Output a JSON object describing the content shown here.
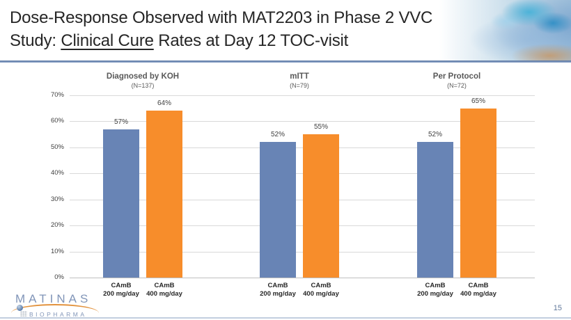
{
  "slide": {
    "title_line1": "Dose-Response Observed with MAT2203 in Phase 2 VVC",
    "title_line2_prefix": "Study: ",
    "title_line2_underline": "Clinical Cure",
    "title_line2_suffix": " Rates at Day 12 TOC-visit",
    "page_number": "15"
  },
  "logo": {
    "name": "MATINAS",
    "subtitle": "BIOPHARMA"
  },
  "colors": {
    "series_blue": "#6884B5",
    "series_orange": "#F78D2B",
    "gridline": "#D9D9D9",
    "title_rule_top": "#54729F"
  },
  "chart_data": {
    "type": "bar",
    "title": "",
    "xlabel": "",
    "ylabel": "",
    "ylim": [
      0,
      70
    ],
    "ytick_step": 10,
    "ytick_labels": [
      "0%",
      "10%",
      "20%",
      "30%",
      "40%",
      "50%",
      "60%",
      "70%"
    ],
    "grid": true,
    "legend_position": "none",
    "value_suffix": "%",
    "groups": [
      {
        "label": "Diagnosed by KOH",
        "n_label": "(N=137)"
      },
      {
        "label": "mITT",
        "n_label": "(N=79)"
      },
      {
        "label": "Per Protocol",
        "n_label": "(N=72)"
      }
    ],
    "series": [
      {
        "name": "CAmB 200 mg/day",
        "tick_lines": [
          "CAmB",
          "200 mg/day"
        ],
        "color": "#6884B5",
        "values": [
          57,
          52,
          52
        ]
      },
      {
        "name": "CAmB 400 mg/day",
        "tick_lines": [
          "CAmB",
          "400 mg/day"
        ],
        "color": "#F78D2B",
        "values": [
          64,
          55,
          65
        ]
      }
    ]
  }
}
